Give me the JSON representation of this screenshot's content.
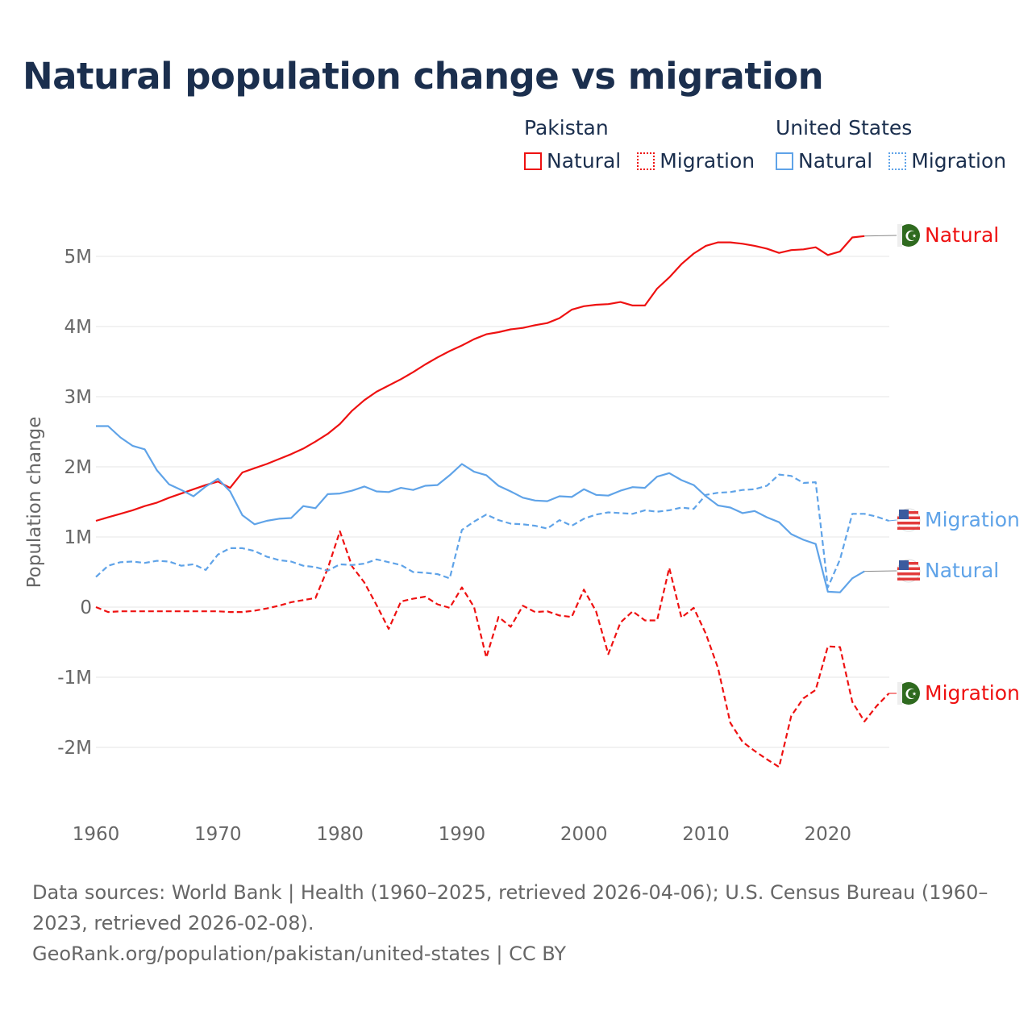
{
  "title": "Natural population change vs migration",
  "legend": {
    "groups": [
      {
        "title": "Pakistan",
        "items": [
          {
            "label": "Natural",
            "style": "solid"
          },
          {
            "label": "Migration",
            "style": "dotted"
          }
        ],
        "color": "#ee1111"
      },
      {
        "title": "United States",
        "items": [
          {
            "label": "Natural",
            "style": "solid"
          },
          {
            "label": "Migration",
            "style": "dotted"
          }
        ],
        "color": "#5fa3e8"
      }
    ]
  },
  "source": {
    "line1": "Data sources: World Bank | Health (1960–2025, retrieved 2026-04-06); U.S. Census Bureau (1960–2023, retrieved 2026-02-08).",
    "line2": "GeoRank.org/population/pakistan/united-states | CC BY"
  },
  "chart_data": {
    "type": "line",
    "title": "Natural population change vs migration",
    "xlabel": "",
    "ylabel": "Population change",
    "xlim": [
      1960,
      2025
    ],
    "ylim": [
      -2.5,
      5.5
    ],
    "x_ticks": [
      1960,
      1970,
      1980,
      1990,
      2000,
      2010,
      2020
    ],
    "y_ticks": [
      {
        "v": 5,
        "label": "5M"
      },
      {
        "v": 4,
        "label": "4M"
      },
      {
        "v": 3,
        "label": "3M"
      },
      {
        "v": 2,
        "label": "2M"
      },
      {
        "v": 1,
        "label": "1M"
      },
      {
        "v": 0,
        "label": "0"
      },
      {
        "v": -1,
        "label": "-1M"
      },
      {
        "v": -2,
        "label": "-2M"
      }
    ],
    "grid": true,
    "units": "millions",
    "series": [
      {
        "name": "Pakistan Natural",
        "end_label": "Natural",
        "country": "Pakistan",
        "color": "#ee1111",
        "dash": false,
        "start": 1960,
        "values": [
          1.23,
          1.28,
          1.33,
          1.38,
          1.44,
          1.49,
          1.56,
          1.62,
          1.68,
          1.74,
          1.79,
          1.7,
          1.92,
          1.98,
          2.04,
          2.11,
          2.18,
          2.26,
          2.36,
          2.47,
          2.61,
          2.8,
          2.95,
          3.07,
          3.16,
          3.25,
          3.35,
          3.46,
          3.56,
          3.65,
          3.73,
          3.82,
          3.89,
          3.92,
          3.96,
          3.98,
          4.02,
          4.05,
          4.12,
          4.24,
          4.29,
          4.31,
          4.32,
          4.35,
          4.3,
          4.3,
          4.54,
          4.7,
          4.89,
          5.04,
          5.15,
          5.2,
          5.2,
          5.18,
          5.15,
          5.11,
          5.05,
          5.09,
          5.1,
          5.13,
          5.02,
          5.07,
          5.27,
          5.29
        ]
      },
      {
        "name": "Pakistan Migration",
        "end_label": "Migration",
        "country": "Pakistan",
        "color": "#ee1111",
        "dash": true,
        "start": 1960,
        "values": [
          0.0,
          -0.07,
          -0.06,
          -0.06,
          -0.06,
          -0.06,
          -0.06,
          -0.06,
          -0.06,
          -0.06,
          -0.06,
          -0.07,
          -0.07,
          -0.05,
          -0.02,
          0.02,
          0.07,
          0.1,
          0.13,
          0.55,
          1.08,
          0.58,
          0.35,
          0.03,
          -0.31,
          0.08,
          0.12,
          0.15,
          0.04,
          -0.01,
          0.28,
          0.0,
          -0.72,
          -0.14,
          -0.28,
          0.02,
          -0.07,
          -0.06,
          -0.12,
          -0.14,
          0.25,
          -0.06,
          -0.67,
          -0.22,
          -0.06,
          -0.19,
          -0.19,
          0.56,
          -0.15,
          -0.01,
          -0.38,
          -0.87,
          -1.65,
          -1.92,
          -2.05,
          -2.17,
          -2.28,
          -1.55,
          -1.3,
          -1.18,
          -0.56,
          -0.57,
          -1.35,
          -1.63,
          -1.41,
          -1.23
        ]
      },
      {
        "name": "United States Natural",
        "end_label": "Natural",
        "country": "United States",
        "color": "#5fa3e8",
        "dash": false,
        "start": 1960,
        "values": [
          2.58,
          2.58,
          2.42,
          2.3,
          2.25,
          1.95,
          1.75,
          1.67,
          1.58,
          1.72,
          1.83,
          1.65,
          1.31,
          1.18,
          1.23,
          1.26,
          1.27,
          1.44,
          1.41,
          1.61,
          1.62,
          1.66,
          1.72,
          1.65,
          1.64,
          1.7,
          1.67,
          1.73,
          1.74,
          1.88,
          2.04,
          1.93,
          1.88,
          1.73,
          1.65,
          1.56,
          1.52,
          1.51,
          1.58,
          1.57,
          1.68,
          1.6,
          1.59,
          1.66,
          1.71,
          1.7,
          1.86,
          1.91,
          1.81,
          1.74,
          1.58,
          1.45,
          1.42,
          1.34,
          1.37,
          1.28,
          1.21,
          1.04,
          0.96,
          0.9,
          0.22,
          0.21,
          0.41,
          0.51
        ]
      },
      {
        "name": "United States Migration",
        "end_label": "Migration",
        "country": "United States",
        "color": "#5fa3e8",
        "dash": true,
        "start": 1960,
        "values": [
          0.43,
          0.59,
          0.64,
          0.65,
          0.63,
          0.66,
          0.65,
          0.59,
          0.61,
          0.53,
          0.75,
          0.84,
          0.84,
          0.8,
          0.72,
          0.67,
          0.65,
          0.59,
          0.57,
          0.52,
          0.61,
          0.6,
          0.62,
          0.68,
          0.64,
          0.6,
          0.5,
          0.49,
          0.47,
          0.41,
          1.1,
          1.22,
          1.32,
          1.24,
          1.19,
          1.18,
          1.16,
          1.12,
          1.24,
          1.16,
          1.26,
          1.32,
          1.35,
          1.34,
          1.33,
          1.38,
          1.36,
          1.38,
          1.42,
          1.4,
          1.6,
          1.63,
          1.64,
          1.67,
          1.68,
          1.73,
          1.89,
          1.87,
          1.77,
          1.78,
          0.28,
          0.68,
          1.33,
          1.33,
          1.29,
          1.23
        ]
      }
    ]
  }
}
